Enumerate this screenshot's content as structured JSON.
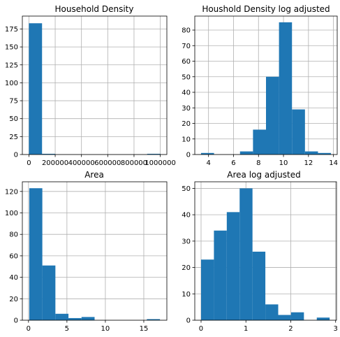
{
  "colors": {
    "bar": "#1f77b4",
    "grid": "#b0b0b0",
    "axis": "#000000"
  },
  "chart_data": [
    {
      "type": "bar",
      "title": "Household Density",
      "xlim": [
        -50000,
        1050000
      ],
      "ylim": [
        0,
        193
      ],
      "bin_edges": [
        0,
        100000,
        200000,
        300000,
        400000,
        500000,
        600000,
        700000,
        800000,
        900000,
        1000000
      ],
      "counts": [
        183,
        1,
        0,
        0,
        0,
        0,
        0,
        0,
        0,
        1
      ],
      "xticks": [
        0,
        200000,
        400000,
        600000,
        800000,
        1000000
      ],
      "xtick_labels": [
        "0",
        "200000",
        "400000",
        "600000",
        "800000",
        "1000000"
      ],
      "yticks": [
        0,
        25,
        50,
        75,
        100,
        125,
        150,
        175
      ],
      "ytick_labels": [
        "0",
        "25",
        "50",
        "75",
        "100",
        "125",
        "150",
        "175"
      ],
      "grid": true
    },
    {
      "type": "bar",
      "title": "Houshold Density log adjusted",
      "xlim": [
        2.9,
        14.3
      ],
      "ylim": [
        0,
        89
      ],
      "bin_edges": [
        3.4,
        4.44,
        5.48,
        6.52,
        7.56,
        8.6,
        9.64,
        10.68,
        11.72,
        12.76,
        13.8
      ],
      "counts": [
        1,
        0,
        0,
        2,
        16,
        50,
        85,
        29,
        2,
        1
      ],
      "xticks": [
        4,
        6,
        8,
        10,
        12,
        14
      ],
      "xtick_labels": [
        "4",
        "6",
        "8",
        "10",
        "12",
        "14"
      ],
      "yticks": [
        0,
        10,
        20,
        30,
        40,
        50,
        60,
        70,
        80
      ],
      "ytick_labels": [
        "0",
        "10",
        "20",
        "30",
        "40",
        "50",
        "60",
        "70",
        "80"
      ],
      "grid": true
    },
    {
      "type": "bar",
      "title": "Area",
      "xlim": [
        -0.8,
        18.0
      ],
      "ylim": [
        0,
        129
      ],
      "bin_edges": [
        0.1,
        1.8,
        3.5,
        5.2,
        6.9,
        8.6,
        10.3,
        12.0,
        13.7,
        15.4,
        17.1
      ],
      "counts": [
        123,
        51,
        6,
        2,
        3,
        0,
        0,
        0,
        0,
        1
      ],
      "xticks": [
        0,
        5,
        10,
        15
      ],
      "xtick_labels": [
        "0",
        "5",
        "10",
        "15"
      ],
      "yticks": [
        0,
        20,
        40,
        60,
        80,
        100,
        120
      ],
      "ytick_labels": [
        "0",
        "20",
        "40",
        "60",
        "80",
        "100",
        "120"
      ],
      "grid": true
    },
    {
      "type": "bar",
      "title": "Area log adjusted",
      "xlim": [
        -0.14,
        3.02
      ],
      "ylim": [
        0,
        52.5
      ],
      "bin_edges": [
        0.0,
        0.2867,
        0.5734,
        0.8601,
        1.1468,
        1.4335,
        1.7202,
        2.0069,
        2.2936,
        2.5803,
        2.867
      ],
      "counts": [
        23,
        34,
        41,
        50,
        26,
        6,
        2,
        3,
        0,
        1
      ],
      "xticks": [
        0,
        1,
        2,
        3
      ],
      "xtick_labels": [
        "0",
        "1",
        "2",
        "3"
      ],
      "yticks": [
        0,
        10,
        20,
        30,
        40,
        50
      ],
      "ytick_labels": [
        "0",
        "10",
        "20",
        "30",
        "40",
        "50"
      ],
      "grid": true
    }
  ]
}
